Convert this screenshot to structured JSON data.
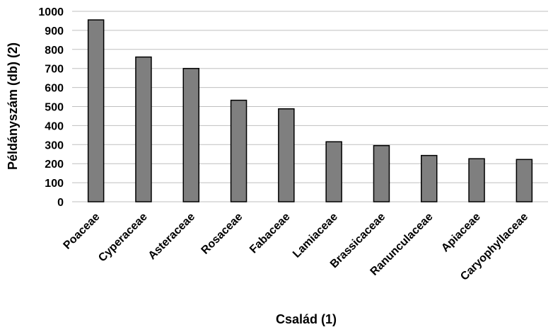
{
  "chart_data": {
    "type": "bar",
    "categories": [
      "Poaceae",
      "Cyperaceae",
      "Asteraceae",
      "Rosaceae",
      "Fabaceae",
      "Lamiaceae",
      "Brassicaceae",
      "Ranunculaceae",
      "Apiaceae",
      "Caryophyllaceae"
    ],
    "values": [
      955,
      760,
      700,
      533,
      488,
      315,
      295,
      243,
      226,
      222
    ],
    "title": "",
    "xlabel": "Család (1)",
    "ylabel": "Példányszám (db) (2)",
    "ylim": [
      0,
      1000
    ],
    "yticks": [
      0,
      100,
      200,
      300,
      400,
      500,
      600,
      700,
      800,
      900,
      1000
    ],
    "grid": "horizontal",
    "legend": "none",
    "colors": {
      "bar": "#7f7f7f",
      "bar_edge": "#000000",
      "grid": "#bfbfbf"
    }
  }
}
